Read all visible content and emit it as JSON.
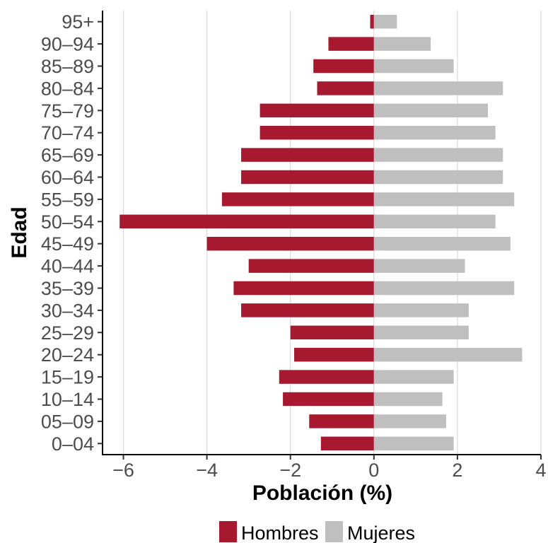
{
  "chart_data": {
    "type": "bar",
    "orientation": "horizontal",
    "stacked": false,
    "categories": [
      "0–04",
      "05–09",
      "10–14",
      "15–19",
      "20–24",
      "25–29",
      "30–34",
      "35–39",
      "40–44",
      "45–49",
      "50–54",
      "55–59",
      "60–64",
      "65–69",
      "70–74",
      "75–79",
      "80–84",
      "85–89",
      "90–94",
      "95+"
    ],
    "series": [
      {
        "name": "Hombres",
        "color": "#A6192E",
        "values": [
          -1.27,
          -1.55,
          -2.18,
          -2.27,
          -1.91,
          -2.0,
          -3.18,
          -3.36,
          -3.0,
          -4.0,
          -6.09,
          -3.64,
          -3.18,
          -3.18,
          -2.73,
          -2.73,
          -1.36,
          -1.45,
          -1.09,
          -0.09
        ]
      },
      {
        "name": "Mujeres",
        "color": "#BFBFBF",
        "values": [
          1.91,
          1.73,
          1.64,
          1.91,
          3.55,
          2.27,
          2.27,
          3.36,
          2.18,
          3.27,
          2.91,
          3.36,
          3.09,
          3.09,
          2.91,
          2.73,
          3.09,
          1.91,
          1.36,
          0.55
        ]
      }
    ],
    "xlabel": "Población (%)",
    "ylabel": "Edad",
    "xlim": [
      -6.5,
      4.0
    ],
    "xticks": [
      -6,
      -4,
      -2,
      0,
      2,
      4
    ],
    "xtick_labels": [
      "−6",
      "−4",
      "−2",
      "0",
      "2",
      "4"
    ],
    "grid": "vertical major",
    "legend_position": "bottom"
  }
}
